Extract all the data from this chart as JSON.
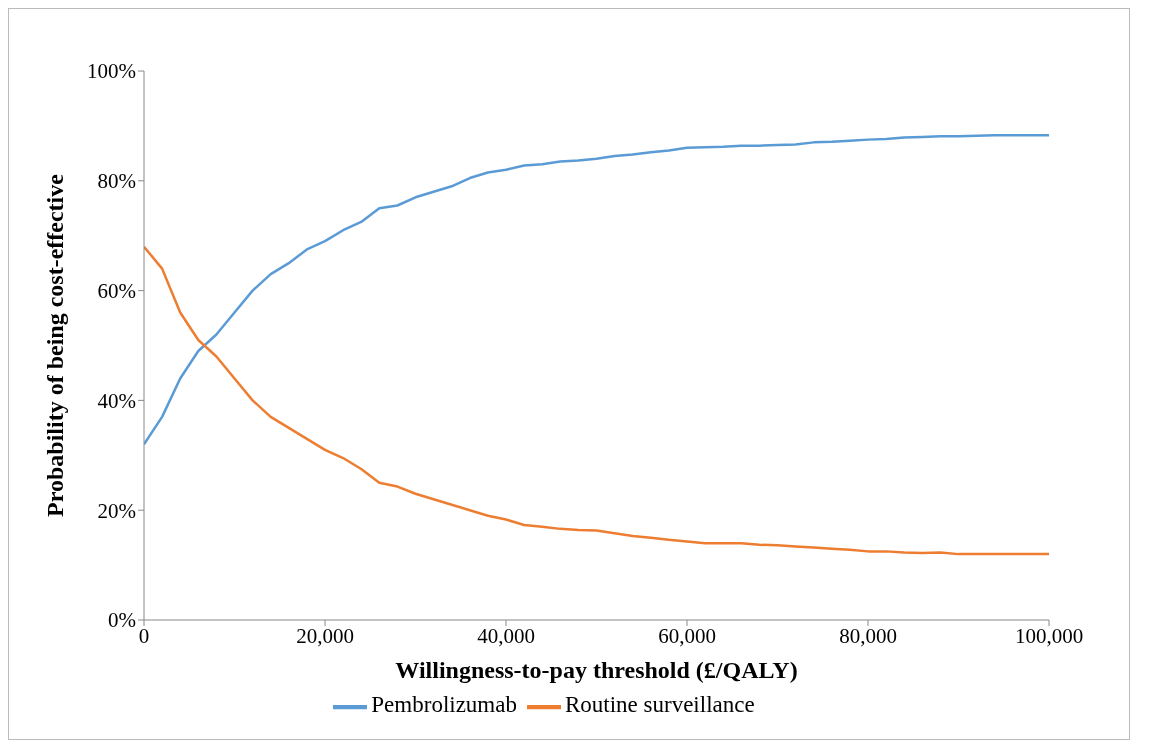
{
  "chart_data": {
    "type": "line",
    "xlabel": "Willingness-to-pay threshold (£/QALY)",
    "ylabel": "Probability of being cost-effective",
    "x": [
      0,
      2000,
      4000,
      6000,
      8000,
      10000,
      12000,
      14000,
      16000,
      18000,
      20000,
      22000,
      24000,
      26000,
      28000,
      30000,
      32000,
      34000,
      36000,
      38000,
      40000,
      42000,
      44000,
      46000,
      48000,
      50000,
      52000,
      54000,
      56000,
      58000,
      60000,
      62000,
      64000,
      66000,
      68000,
      70000,
      72000,
      74000,
      76000,
      78000,
      80000,
      82000,
      84000,
      86000,
      88000,
      90000,
      92000,
      94000,
      96000,
      98000,
      100000
    ],
    "series": [
      {
        "name": "Pembrolizumab",
        "color": "#5b9bd5",
        "values": [
          32,
          37,
          44,
          49,
          52,
          56,
          60,
          63,
          65,
          67.5,
          69,
          71,
          72.5,
          75,
          75.5,
          77,
          78,
          79,
          80.5,
          81.5,
          82,
          82.8,
          83,
          83.5,
          83.7,
          84,
          84.5,
          84.8,
          85.2,
          85.5,
          86,
          86.1,
          86.2,
          86.4,
          86.4,
          86.5,
          86.6,
          87,
          87.1,
          87.3,
          87.5,
          87.6,
          87.9,
          88,
          88.1,
          88.1,
          88.2,
          88.3,
          88.3,
          88.3,
          88.3
        ]
      },
      {
        "name": "Routine surveillance",
        "color": "#ed7d31",
        "values": [
          68,
          64,
          56,
          51,
          48,
          44,
          40,
          37,
          35,
          33,
          31,
          29.5,
          27.5,
          25,
          24.3,
          23,
          22,
          21,
          20,
          19,
          18.3,
          17.3,
          17,
          16.6,
          16.4,
          16.3,
          15.8,
          15.3,
          15,
          14.6,
          14.3,
          14,
          14,
          14,
          13.7,
          13.6,
          13.4,
          13.2,
          13,
          12.8,
          12.5,
          12.5,
          12.3,
          12.2,
          12.3,
          12,
          12,
          12,
          12,
          12,
          12
        ]
      }
    ],
    "xlim": [
      0,
      100000
    ],
    "xticks": [
      {
        "value": 0,
        "label": "0"
      },
      {
        "value": 20000,
        "label": "20,000"
      },
      {
        "value": 40000,
        "label": "40,000"
      },
      {
        "value": 60000,
        "label": "60,000"
      },
      {
        "value": 80000,
        "label": "80,000"
      },
      {
        "value": 100000,
        "label": "100,000"
      }
    ],
    "ylim": [
      0,
      100
    ],
    "yticks": [
      {
        "value": 0,
        "label": "0%"
      },
      {
        "value": 20,
        "label": "20%"
      },
      {
        "value": 40,
        "label": "40%"
      },
      {
        "value": 60,
        "label": "60%"
      },
      {
        "value": 80,
        "label": "80%"
      },
      {
        "value": 100,
        "label": "100%"
      }
    ],
    "grid": false,
    "legend": "bottom",
    "marker": "none",
    "line_style": "solid"
  }
}
